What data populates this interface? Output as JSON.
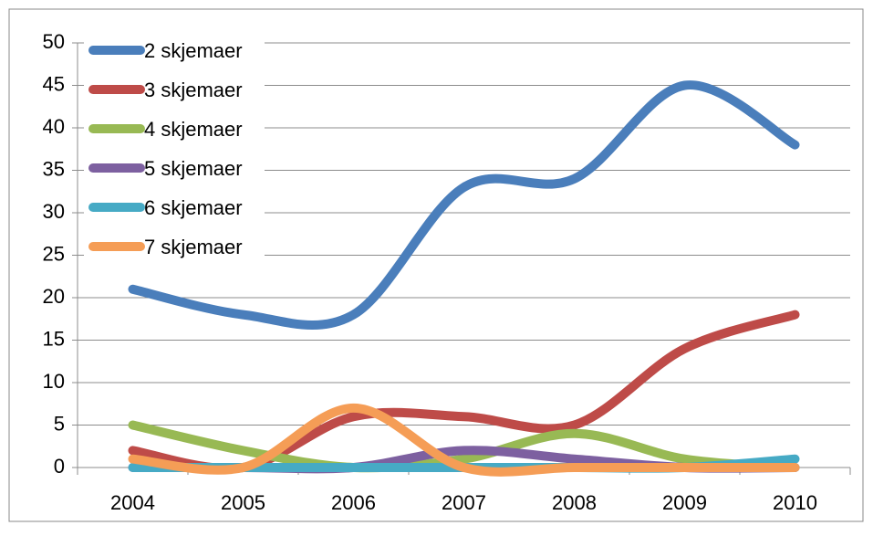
{
  "chart_data": {
    "type": "line",
    "smooth": true,
    "categories": [
      "2004",
      "2005",
      "2006",
      "2007",
      "2008",
      "2009",
      "2010"
    ],
    "series": [
      {
        "name": "2 skjemaer",
        "color": "#4a7ebb",
        "values": [
          21,
          18,
          18,
          33,
          34,
          45,
          38
        ]
      },
      {
        "name": "3 skjemaer",
        "color": "#be4b48",
        "values": [
          2,
          0,
          6,
          6,
          5,
          14,
          18
        ]
      },
      {
        "name": "4 skjemaer",
        "color": "#98b954",
        "values": [
          5,
          2,
          0,
          1,
          4,
          1,
          0
        ]
      },
      {
        "name": "5 skjemaer",
        "color": "#7d60a0",
        "values": [
          0,
          0,
          0,
          2,
          1,
          0,
          0
        ]
      },
      {
        "name": "6 skjemaer",
        "color": "#46aac5",
        "values": [
          0,
          0,
          0,
          0,
          0,
          0,
          1
        ]
      },
      {
        "name": "7 skjemaer",
        "color": "#f59d56",
        "values": [
          1,
          0,
          7,
          0,
          0,
          0,
          0
        ]
      }
    ],
    "ylim": [
      0,
      50
    ],
    "yticks": [
      0,
      5,
      10,
      15,
      20,
      25,
      30,
      35,
      40,
      45,
      50
    ],
    "grid": true,
    "legend": "top-left"
  }
}
